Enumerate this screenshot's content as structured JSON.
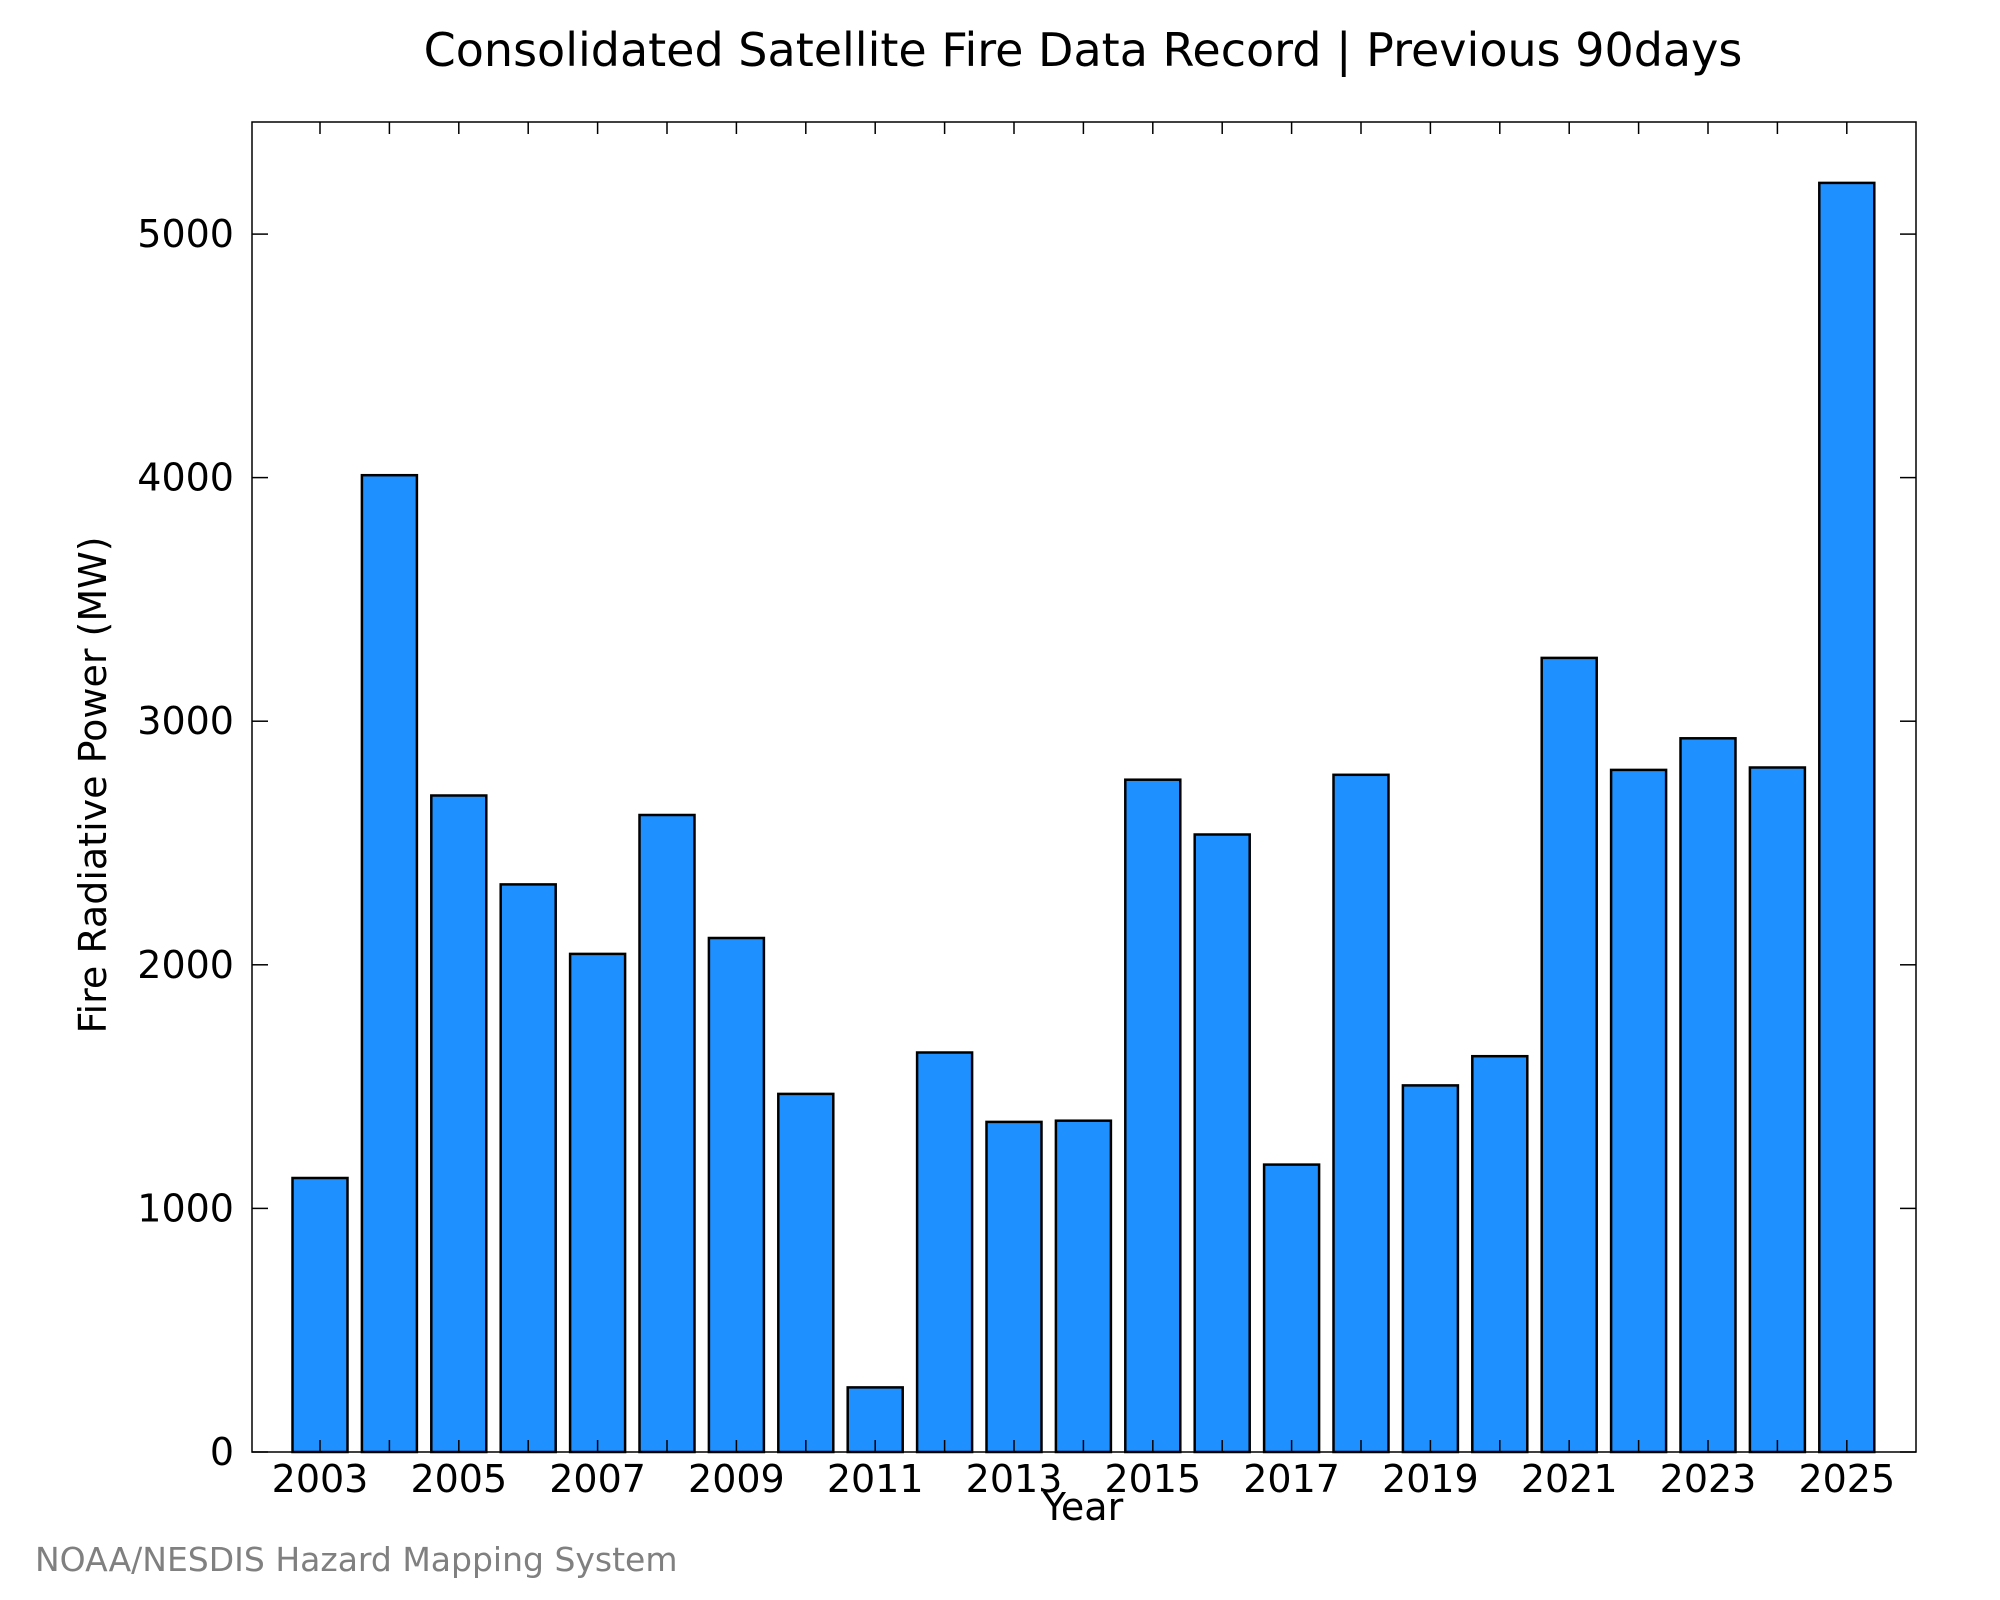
{
  "chart_data": {
    "type": "bar",
    "title": "Consolidated Satellite Fire Data Record | Previous 90days",
    "xlabel": "Year",
    "ylabel": "Fire Radiative Power (MW)",
    "categories": [
      2003,
      2004,
      2005,
      2006,
      2007,
      2008,
      2009,
      2010,
      2011,
      2012,
      2013,
      2014,
      2015,
      2016,
      2017,
      2018,
      2019,
      2020,
      2021,
      2022,
      2023,
      2024,
      2025
    ],
    "values": [
      1125,
      4010,
      2695,
      2330,
      2045,
      2615,
      2110,
      1470,
      265,
      1640,
      1355,
      1360,
      2760,
      2535,
      1180,
      2780,
      1505,
      1625,
      3260,
      2800,
      2930,
      2810,
      5210
    ],
    "xticks": [
      "2003",
      "2005",
      "2007",
      "2009",
      "2011",
      "2013",
      "2015",
      "2017",
      "2019",
      "2021",
      "2023",
      "2025"
    ],
    "yticks": [
      "0",
      "1000",
      "2000",
      "3000",
      "4000",
      "5000"
    ],
    "ylim": [
      0,
      5460
    ],
    "bar_color": "#1e90ff",
    "grid": false,
    "legend": "none"
  },
  "credit": "NOAA/NESDIS Hazard Mapping System"
}
